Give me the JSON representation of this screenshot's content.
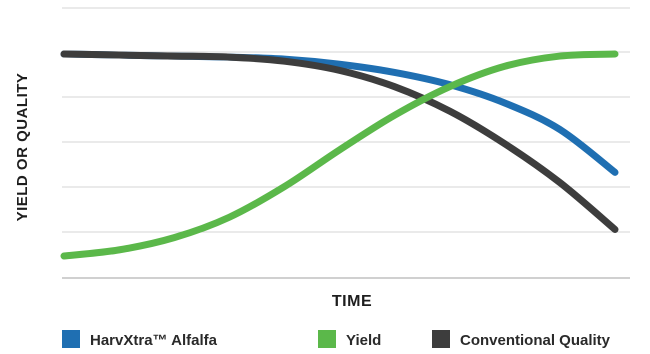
{
  "chart_data": {
    "type": "line",
    "title": "",
    "xlabel": "TIME",
    "ylabel": "YIELD OR QUALITY",
    "x_tick_labels": false,
    "y_tick_labels": false,
    "grid": "horizontal",
    "xlim": [
      0,
      1
    ],
    "ylim": [
      0,
      1
    ],
    "legend_position": "bottom",
    "x": [
      0,
      0.1,
      0.2,
      0.3,
      0.4,
      0.5,
      0.6,
      0.7,
      0.8,
      0.9,
      1.0
    ],
    "series": [
      {
        "name": "HarvXtra™ Alfalfa",
        "color": "#1f6fb2",
        "values": [
          0.99,
          0.985,
          0.98,
          0.975,
          0.965,
          0.94,
          0.9,
          0.84,
          0.75,
          0.62,
          0.41
        ]
      },
      {
        "name": "Yield",
        "color": "#5bb84a",
        "values": [
          0.0,
          0.03,
          0.09,
          0.19,
          0.34,
          0.52,
          0.69,
          0.83,
          0.93,
          0.98,
          0.99
        ]
      },
      {
        "name": "Conventional Quality",
        "color": "#3d3d3d",
        "values": [
          0.99,
          0.985,
          0.98,
          0.975,
          0.955,
          0.91,
          0.83,
          0.71,
          0.55,
          0.36,
          0.13
        ]
      }
    ]
  }
}
